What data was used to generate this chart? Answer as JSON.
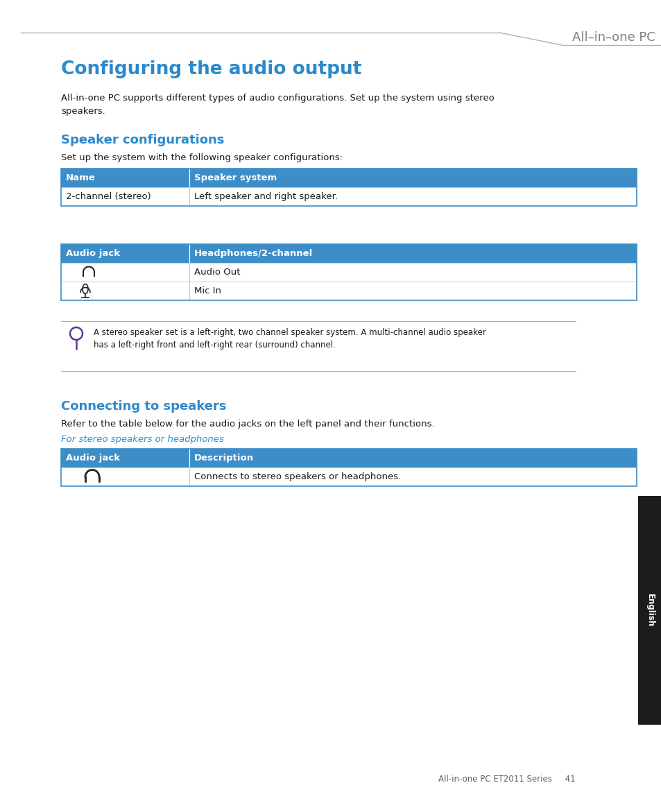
{
  "bg_color": "#ffffff",
  "header_text": "All–in–one PC",
  "header_text_color": "#808080",
  "main_title": "Configuring the audio output",
  "main_title_color": "#2b89cc",
  "intro_text": "All-in-one PC supports different types of audio configurations. Set up the system using stereo\nspeakers.",
  "section1_title": "Speaker configurations",
  "section1_title_color": "#2b89cc",
  "section1_intro": "Set up the system with the following speaker configurations:",
  "table1_header": [
    "Name",
    "Speaker system"
  ],
  "table1_rows": [
    [
      "2-channel (stereo)",
      "Left speaker and right speaker."
    ]
  ],
  "table2_header": [
    "Audio jack",
    "Headphones/2-channel"
  ],
  "table2_row1_col1": "∩",
  "table2_row1_col2": "Audio Out",
  "table2_row2_col2": "Mic In",
  "note_text": "A stereo speaker set is a left-right, two channel speaker system. A multi-channel audio speaker\nhas a left-right front and left-right rear (surround) channel.",
  "section2_title": "Connecting to speakers",
  "section2_title_color": "#2b89cc",
  "section2_intro": "Refer to the table below for the audio jacks on the left panel and their functions.",
  "section2_subtitle": "For stereo speakers or headphones",
  "section2_subtitle_color": "#2b89cc",
  "table3_header": [
    "Audio jack",
    "Description"
  ],
  "table3_row1_col2": "Connects to stereo speakers or headphones.",
  "footer_text": "All-in-one PC ET2011 Series     41",
  "table_header_bg": "#3d8ec8",
  "table_header_text": "#ffffff",
  "table_border_color": "#3d8ec8",
  "table_row_sep_color": "#c0c8d0",
  "sidebar_bg": "#1c1c1c",
  "sidebar_text": "English",
  "sidebar_text_color": "#ffffff",
  "line_color": "#b0b0b0",
  "text_color": "#1a1a1a"
}
